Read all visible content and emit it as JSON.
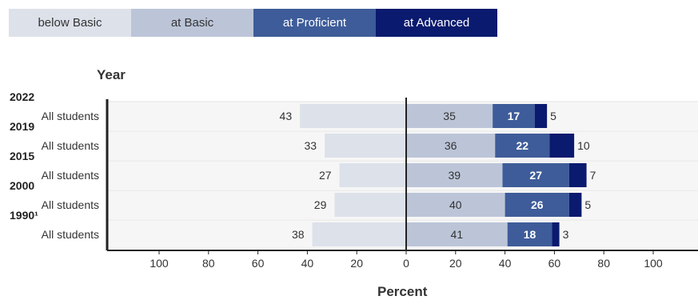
{
  "legend": [
    {
      "label": "below Basic",
      "color": "#dde1ea",
      "text_color": "#333333"
    },
    {
      "label": "at Basic",
      "color": "#bcc5d8",
      "text_color": "#333333"
    },
    {
      "label": "at Proficient",
      "color": "#3e5c99",
      "text_color": "#ffffff"
    },
    {
      "label": "at Advanced",
      "color": "#0a1a6e",
      "text_color": "#ffffff"
    }
  ],
  "chart_data": {
    "type": "bar",
    "orientation": "horizontal-diverging",
    "y_title": "Year",
    "xlabel": "Percent",
    "x_ticks": [
      "100",
      "80",
      "60",
      "40",
      "20",
      "0",
      "20",
      "40",
      "60",
      "80",
      "100"
    ],
    "xlim": [
      -120,
      120
    ],
    "groups": [
      {
        "year": "2022",
        "category": "All students",
        "below_basic": 43,
        "at_basic": 35,
        "at_proficient": 17,
        "at_advanced": 5
      },
      {
        "year": "2019",
        "category": "All students",
        "below_basic": 33,
        "at_basic": 36,
        "at_proficient": 22,
        "at_advanced": 10
      },
      {
        "year": "2015",
        "category": "All students",
        "below_basic": 27,
        "at_basic": 39,
        "at_proficient": 27,
        "at_advanced": 7
      },
      {
        "year": "2000",
        "category": "All students",
        "below_basic": 29,
        "at_basic": 40,
        "at_proficient": 26,
        "at_advanced": 5
      },
      {
        "year": "1990¹",
        "category": "All students",
        "below_basic": 38,
        "at_basic": 41,
        "at_proficient": 18,
        "at_advanced": 3
      }
    ],
    "colors": {
      "below_basic": "#dde1ea",
      "at_basic": "#bcc5d8",
      "at_proficient": "#3e5c99",
      "at_advanced": "#0a1a6e"
    }
  }
}
